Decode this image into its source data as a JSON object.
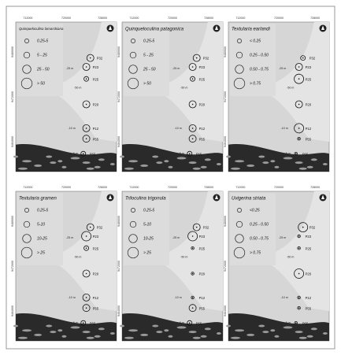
{
  "maps": [
    {
      "title": "Quinqueloculina lamarckiana",
      "legend": [
        "0.25-5",
        "5 - 25",
        "25 - 50",
        "> 50"
      ]
    },
    {
      "title": "Quinqueloculina patagonica",
      "legend": [
        "0.25-5",
        "5 - 25",
        "25 - 50",
        "> 50"
      ]
    },
    {
      "title": "Textularia earlandi",
      "legend": [
        "< 0.25",
        "0.25 - 0.50",
        "0.50 - 0.75",
        "> 0.75"
      ]
    },
    {
      "title": "Textularia gramen",
      "legend": [
        "0.25-5",
        "5-10",
        "10-25",
        "> 25"
      ]
    },
    {
      "title": "Triloculina trigonula",
      "legend": [
        "0.25-5",
        "5-10",
        "10-25",
        "> 25"
      ]
    },
    {
      "title": "Uvigerina striata",
      "legend": [
        "<0.25",
        "0.25 - 0.50",
        "0.50 - 0.75",
        "> 0.75"
      ]
    }
  ],
  "stations": [
    "P32",
    "P23",
    "P25",
    "P20",
    "P12",
    "P55",
    "P65"
  ],
  "depths": [
    "-25 m",
    "-50 m",
    "-10 m",
    "-6 m"
  ],
  "eastings": [
    "712000",
    "720000",
    "728000"
  ],
  "northings": [
    "9480000",
    "9472000",
    "9464000"
  ]
}
